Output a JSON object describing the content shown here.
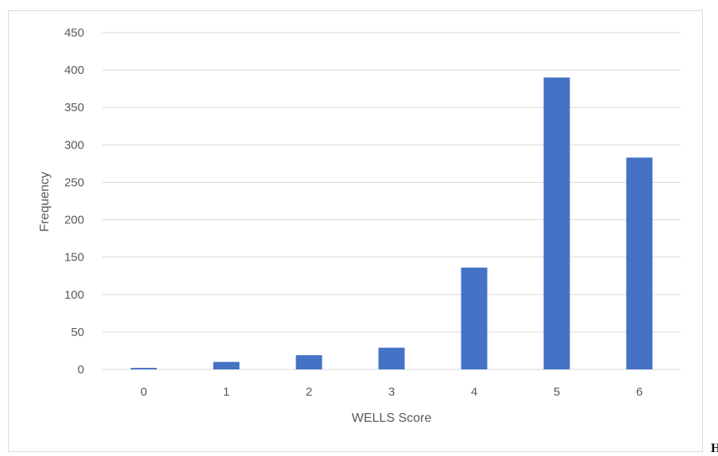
{
  "chart_data": {
    "type": "bar",
    "categories": [
      "0",
      "1",
      "2",
      "3",
      "4",
      "5",
      "6"
    ],
    "values": [
      2,
      10,
      19,
      29,
      136,
      390,
      283
    ],
    "title": "",
    "xlabel": "WELLS Score",
    "ylabel": "Frequency",
    "ylim": [
      0,
      450
    ],
    "yticks": [
      "0",
      "50",
      "100",
      "150",
      "200",
      "250",
      "300",
      "350",
      "400",
      "450"
    ],
    "grid": true,
    "bar_color": "#4472c4",
    "grid_color": "#d9d9d9"
  },
  "page": {
    "stray_text": "H"
  }
}
